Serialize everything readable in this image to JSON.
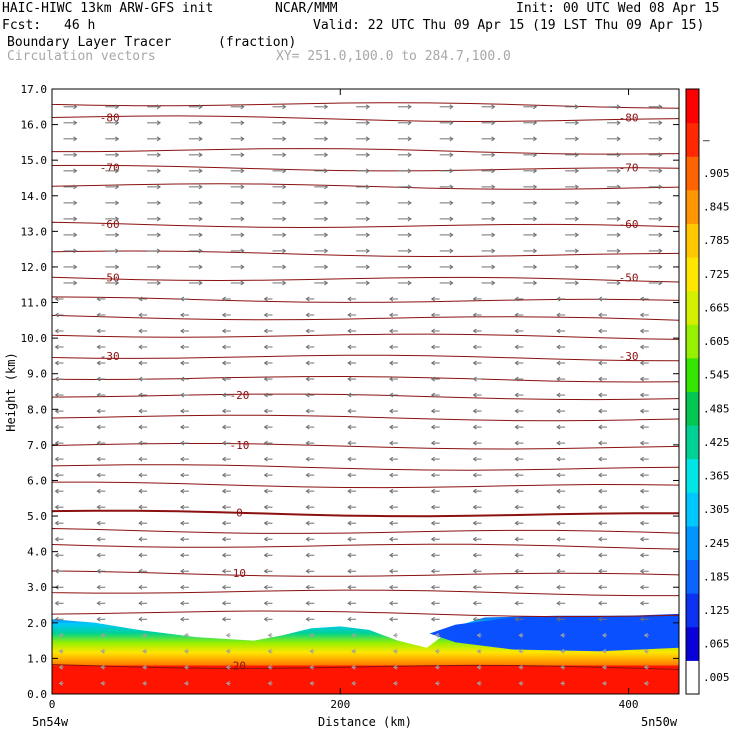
{
  "header": {
    "model": "HAIC-HIWC 13km ARW-GFS init",
    "org": "NCAR/MMM",
    "init": "Init: 00 UTC Wed 08 Apr 15",
    "fcst_label": "Fcst:",
    "fcst_value": "46 h",
    "valid": "Valid: 22 UTC Thu 09 Apr 15 (19 LST Thu 09 Apr 15)",
    "field": "Boundary Layer Tracer",
    "units": "(fraction)",
    "vector_label": "Circulation vectors",
    "xy": "XY= 251.0,100.0 to 284.7,100.0"
  },
  "chart_data": {
    "type": "heatmap",
    "ylabel": "Height (km)",
    "xlabel": "Distance (km)",
    "x_end_labels": [
      "5n54w",
      "5n50w"
    ],
    "xlim": [
      0,
      435
    ],
    "ylim": [
      0,
      17
    ],
    "x_ticks": [
      0,
      200,
      400
    ],
    "y_ticks": [
      "0.0",
      "1.0",
      "2.0",
      "3.0",
      "4.0",
      "5.0",
      "6.0",
      "7.0",
      "8.0",
      "9.0",
      "10.0",
      "11.0",
      "12.0",
      "13.0",
      "14.0",
      "15.0",
      "16.0",
      "17.0"
    ],
    "colorbar": {
      "labels": [
        ".005",
        ".065",
        ".125",
        ".185",
        ".245",
        ".305",
        ".365",
        ".425",
        ".485",
        ".545",
        ".605",
        ".665",
        ".725",
        ".785",
        ".845",
        ".905",
        "–"
      ],
      "colors": [
        "#ffffff",
        "#0a00d8",
        "#0a32f0",
        "#0a64ff",
        "#0096ff",
        "#00c8ff",
        "#00e6e6",
        "#00d296",
        "#00c850",
        "#32e600",
        "#96f000",
        "#d2f000",
        "#ffe600",
        "#ffc800",
        "#ff9600",
        "#ff6400",
        "#ff2800",
        "#ff0000"
      ]
    },
    "temperature_contours": [
      {
        "label": "-80",
        "y": 16.2
      },
      {
        "label": "-70",
        "y": 14.8
      },
      {
        "label": "-60",
        "y": 13.2
      },
      {
        "label": "-50",
        "y": 11.7
      },
      {
        "label": "-30",
        "y": 9.5
      },
      {
        "label": "-20",
        "y": 8.4
      },
      {
        "label": "-10",
        "y": 7.0
      },
      {
        "label": "0",
        "y": 5.1
      },
      {
        "label": "10",
        "y": 3.4
      },
      {
        "label": "20",
        "y": 0.8
      }
    ],
    "tracer_top_km": [
      [
        0,
        2.1
      ],
      [
        30,
        2.0
      ],
      [
        60,
        1.8
      ],
      [
        100,
        1.6
      ],
      [
        140,
        1.5
      ],
      [
        160,
        1.65
      ],
      [
        180,
        1.85
      ],
      [
        200,
        1.9
      ],
      [
        220,
        1.8
      ],
      [
        240,
        1.5
      ],
      [
        260,
        1.3
      ],
      [
        280,
        1.9
      ],
      [
        300,
        2.15
      ],
      [
        350,
        2.2
      ],
      [
        400,
        2.2
      ],
      [
        435,
        2.25
      ]
    ]
  }
}
